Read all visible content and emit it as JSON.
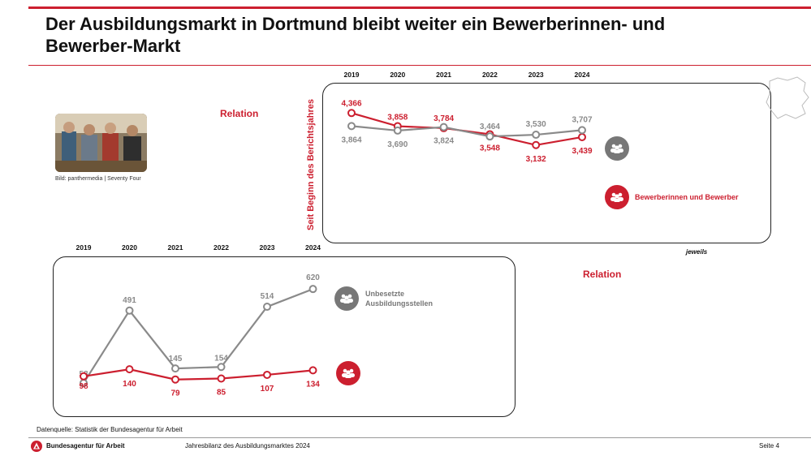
{
  "header": {
    "title_line1": "Der Ausbildungsmarkt in Dortmund bleibt weiter ein Bewerberinnen- und",
    "title_line2": "Bewerber-Markt"
  },
  "photo": {
    "caption": "Bild: panthermedia | Seventy Four"
  },
  "labels": {
    "relation_top": "Relation",
    "relation_bottom": "Relation",
    "vertical": "Seit Beginn des Berichtsjahres",
    "jeweils": "jeweils"
  },
  "legend": {
    "bewerber": "Bewerberinnen und Bewerber",
    "stellen_line1": "Unbesetzte",
    "stellen_line2": "Ausbildungsstellen"
  },
  "colors": {
    "red": "#cc1f2f",
    "gray": "#8a8a8a"
  },
  "icons": {
    "group": "people-group-icon",
    "logo": "bundesagentur-logo-icon"
  },
  "chart_data": [
    {
      "type": "line",
      "x": [
        "2019",
        "2020",
        "2021",
        "2022",
        "2023",
        "2024"
      ],
      "series": [
        {
          "color": "#cc1f2f",
          "values": [
            4366,
            3858,
            3784,
            3548,
            3132,
            3439
          ],
          "labels": [
            "4,366",
            "3,858",
            "3,784",
            "3,548",
            "3,132",
            "3,439"
          ]
        },
        {
          "color": "#8a8a8a",
          "values": [
            3864,
            3690,
            3824,
            3464,
            3530,
            3707
          ],
          "labels": [
            "3,864",
            "3,690",
            "3,824",
            "3,464",
            "3,530",
            "3,707"
          ]
        }
      ],
      "ylim": [
        3000,
        4500
      ],
      "legend": "Bewerberinnen und Bewerber"
    },
    {
      "type": "line",
      "x": [
        "2019",
        "2020",
        "2021",
        "2022",
        "2023",
        "2024"
      ],
      "series": [
        {
          "color": "#8a8a8a",
          "values": [
            58,
            491,
            145,
            154,
            514,
            620
          ],
          "labels": [
            "58",
            "491",
            "145",
            "154",
            "514",
            "620"
          ]
        },
        {
          "color": "#cc1f2f",
          "values": [
            98,
            140,
            79,
            85,
            107,
            134
          ],
          "labels": [
            "98",
            "140",
            "79",
            "85",
            "107",
            "134"
          ]
        }
      ],
      "ylim": [
        0,
        650
      ],
      "legend": "Unbesetzte Ausbildungsstellen"
    }
  ],
  "footer": {
    "source": "Datenquelle: Statistik der Bundesagentur für Arbeit",
    "brand": "Bundesagentur für Arbeit",
    "doc_title": "Jahresbilanz des Ausbildungsmarktes 2024",
    "page": "Seite 4"
  }
}
